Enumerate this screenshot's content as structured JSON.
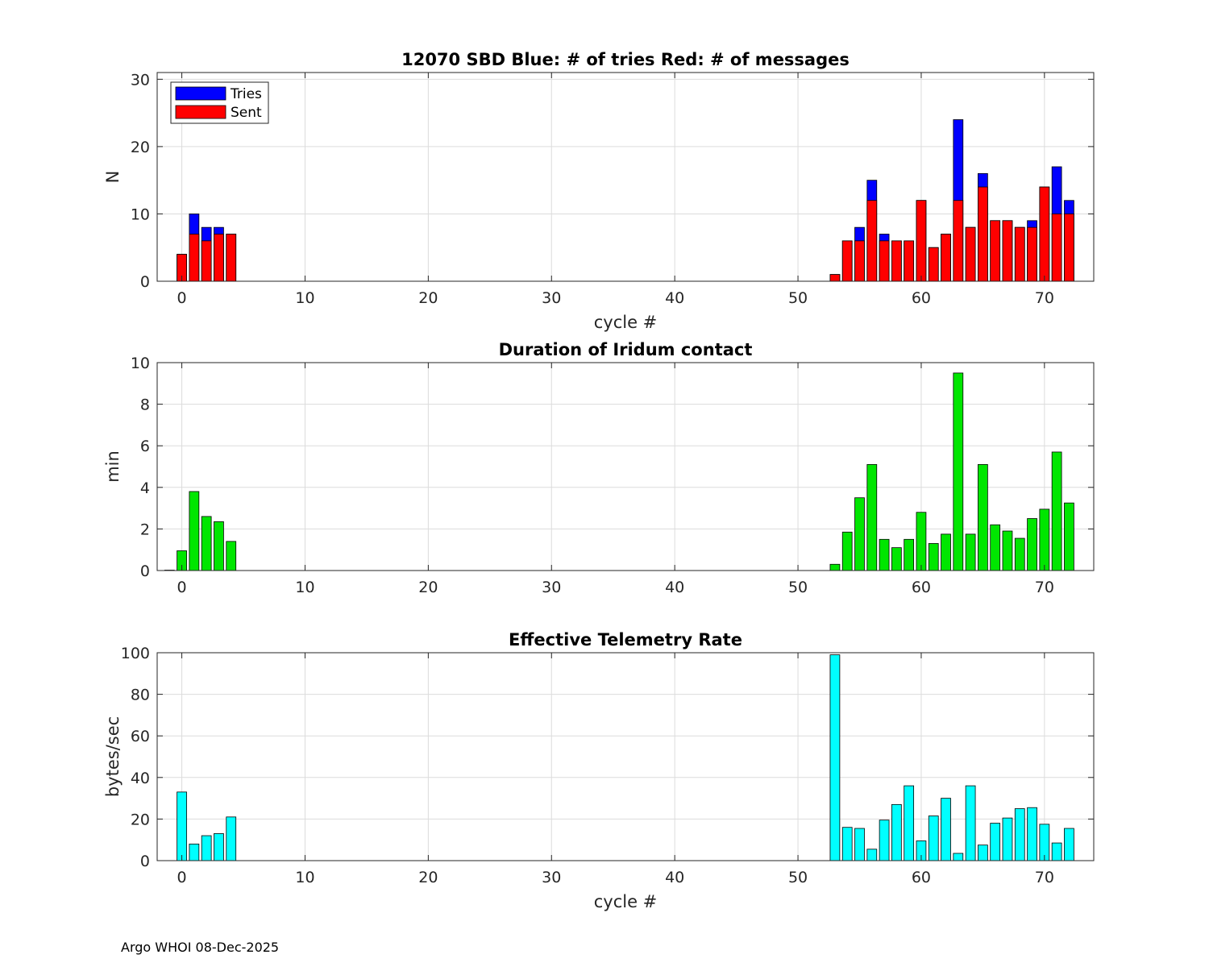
{
  "footer": "Argo WHOI 08-Dec-2025",
  "colors": {
    "tries": "#0000ff",
    "sent": "#ff0000",
    "duration": "#00e600",
    "rate": "#00ffff",
    "grid": "#dcdcdc",
    "axis": "#262626"
  },
  "chart_data": [
    {
      "type": "bar",
      "title": "12070 SBD  Blue: # of tries   Red: # of messages",
      "xlabel": "cycle #",
      "ylabel": "N",
      "xlim": [
        -2,
        74
      ],
      "ylim": [
        0,
        31
      ],
      "xticks": [
        0,
        10,
        20,
        30,
        40,
        50,
        60,
        70
      ],
      "yticks": [
        0,
        10,
        20,
        30
      ],
      "grid": true,
      "legend": {
        "position": "top-left",
        "entries": [
          "Tries",
          "Sent"
        ]
      },
      "x": [
        0,
        1,
        2,
        3,
        4,
        53,
        54,
        55,
        56,
        57,
        58,
        59,
        60,
        61,
        62,
        63,
        64,
        65,
        66,
        67,
        68,
        69,
        70,
        71,
        72
      ],
      "series": [
        {
          "name": "Tries",
          "values": [
            4,
            10,
            8,
            8,
            7,
            1,
            6,
            8,
            15,
            7,
            6,
            6,
            12,
            5,
            7,
            24,
            8,
            16,
            9,
            9,
            8,
            9,
            14,
            17,
            12
          ]
        },
        {
          "name": "Sent",
          "values": [
            4,
            7,
            6,
            7,
            7,
            1,
            6,
            6,
            12,
            6,
            6,
            6,
            12,
            5,
            7,
            12,
            8,
            14,
            9,
            9,
            8,
            8,
            14,
            10,
            10
          ]
        }
      ]
    },
    {
      "type": "bar",
      "title": "Duration of Iridum contact",
      "xlabel": "",
      "ylabel": "min",
      "xlim": [
        -2,
        74
      ],
      "ylim": [
        0,
        10
      ],
      "xticks": [
        0,
        10,
        20,
        30,
        40,
        50,
        60,
        70
      ],
      "yticks": [
        0,
        2,
        4,
        6,
        8,
        10
      ],
      "grid": true,
      "x": [
        -1,
        0,
        1,
        2,
        3,
        4,
        53,
        54,
        55,
        56,
        57,
        58,
        59,
        60,
        61,
        62,
        63,
        64,
        65,
        66,
        67,
        68,
        69,
        70,
        71,
        72
      ],
      "series": [
        {
          "name": "Duration",
          "values": [
            0.02,
            0.95,
            3.8,
            2.6,
            2.35,
            1.4,
            0.3,
            1.85,
            3.5,
            5.1,
            1.5,
            1.1,
            1.5,
            2.8,
            1.3,
            1.75,
            9.5,
            1.75,
            5.1,
            2.2,
            1.9,
            1.55,
            2.5,
            2.95,
            5.7,
            3.25
          ]
        }
      ]
    },
    {
      "type": "bar",
      "title": "Effective Telemetry Rate",
      "xlabel": "cycle #",
      "ylabel": "bytes/sec",
      "xlim": [
        -2,
        74
      ],
      "ylim": [
        0,
        100
      ],
      "xticks": [
        0,
        10,
        20,
        30,
        40,
        50,
        60,
        70
      ],
      "yticks": [
        0,
        20,
        40,
        60,
        80,
        100
      ],
      "grid": true,
      "x": [
        0,
        1,
        2,
        3,
        4,
        53,
        54,
        55,
        56,
        57,
        58,
        59,
        60,
        61,
        62,
        63,
        64,
        65,
        66,
        67,
        68,
        69,
        70,
        71,
        72
      ],
      "series": [
        {
          "name": "Rate",
          "values": [
            33,
            8,
            12,
            13,
            21,
            99,
            16,
            15.5,
            5.5,
            19.5,
            27,
            36,
            9.5,
            21.5,
            30,
            3.5,
            36,
            7.5,
            18,
            20.5,
            25,
            25.5,
            17.5,
            8.5,
            15.5
          ]
        }
      ]
    }
  ]
}
